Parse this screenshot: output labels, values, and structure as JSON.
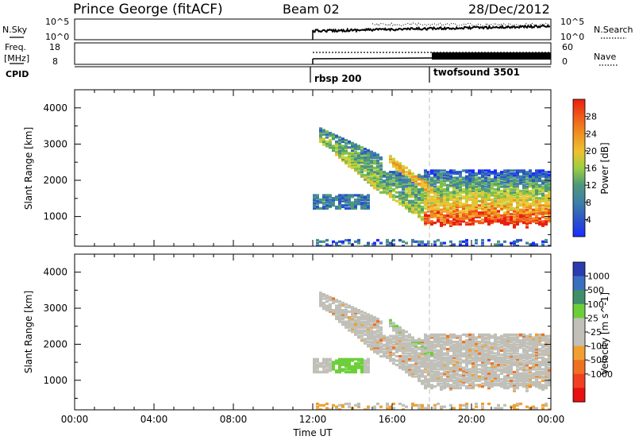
{
  "header": {
    "station": "Prince George (fitACF)",
    "beam": "Beam 02",
    "date": "28/Dec/2012"
  },
  "top_panels": {
    "sky_label": "N.Sky",
    "sky_ticks": [
      "10^5",
      "10^0"
    ],
    "search_label": "N.Search",
    "search_ticks": [
      "10^5",
      "10^0"
    ],
    "freq_label_1": "Freq.",
    "freq_label_2": "[MHz]",
    "freq_ticks": [
      "18",
      "8"
    ],
    "nave_label": "Nave",
    "nave_ticks": [
      "60",
      "0"
    ],
    "cpid_label": "CPID",
    "cpid_segments": [
      {
        "name": "rbsp 200",
        "start_hour": 12
      },
      {
        "name": "twofsound 3501",
        "start_hour": 18
      }
    ]
  },
  "x_axis": {
    "label": "Time UT",
    "ticks": [
      "00:00",
      "04:00",
      "08:00",
      "12:00",
      "16:00",
      "20:00",
      "00:00"
    ]
  },
  "panels": [
    {
      "ylabel": "Slant Range [km]",
      "yticks": [
        "1000",
        "2000",
        "3000",
        "4000"
      ],
      "colorbar_label": "Power [dB]",
      "colorbar_ticks": [
        "4",
        "8",
        "12",
        "16",
        "20",
        "24",
        "28"
      ]
    },
    {
      "ylabel": "Slant Range [km]",
      "yticks": [
        "1000",
        "2000",
        "3000",
        "4000"
      ],
      "colorbar_label": "Velocity [m s^-1]",
      "colorbar_ticks": [
        "1000",
        "500",
        "100",
        "25",
        "-25",
        "-100",
        "-500",
        "-1000"
      ]
    }
  ],
  "colors": {
    "power_scale": [
      "#1a2cff",
      "#2a55c8",
      "#3f7fa8",
      "#4e9a78",
      "#7fbf4c",
      "#c8d23a",
      "#f0c030",
      "#f09020",
      "#f05818",
      "#e82010"
    ],
    "velocity_scale": [
      "#2a3cb0",
      "#3a6fc0",
      "#3f8f6a",
      "#6ccf3a",
      "#c0c0b8",
      "#c0c0b8",
      "#f0a030",
      "#f07020",
      "#f04020",
      "#e81010"
    ]
  },
  "chart_data": [
    {
      "type": "heatmap",
      "title": "Power [dB]",
      "xlabel": "Time UT",
      "ylabel": "Slant Range [km]",
      "x_range_hours": [
        0,
        24
      ],
      "ylim": [
        180,
        4500
      ],
      "clim": [
        0,
        30
      ],
      "data_start_hour": 12,
      "features": [
        {
          "name": "main echo band",
          "hours": [
            12.5,
            24
          ],
          "range_km": [
            800,
            3500
          ],
          "power_db": [
            14,
            30
          ]
        },
        {
          "name": "upper descending band",
          "hours": [
            15.8,
            24
          ],
          "range_km": [
            1700,
            2600
          ],
          "power_db": [
            8,
            20
          ]
        },
        {
          "name": "isolated patch",
          "hours": [
            12,
            14.8
          ],
          "range_km": [
            1200,
            1600
          ],
          "power_db": [
            4,
            12
          ]
        },
        {
          "name": "near range scatter",
          "hours": [
            12,
            24
          ],
          "range_km": [
            180,
            400
          ],
          "power_db": [
            4,
            12
          ]
        }
      ]
    },
    {
      "type": "heatmap",
      "title": "Velocity [m s^-1]",
      "xlabel": "Time UT",
      "ylabel": "Slant Range [km]",
      "x_range_hours": [
        0,
        24
      ],
      "ylim": [
        180,
        4500
      ],
      "clim": [
        -1000,
        1000
      ],
      "data_start_hour": 12,
      "features": [
        {
          "name": "low velocity (ground scatter)",
          "hours": [
            12.5,
            24
          ],
          "range_km": [
            800,
            3500
          ],
          "velocity_ms": [
            -25,
            25
          ]
        },
        {
          "name": "positive velocity patch",
          "hours": [
            12.8,
            14.5
          ],
          "range_km": [
            1400,
            1700
          ],
          "velocity_ms": [
            100,
            500
          ]
        },
        {
          "name": "negative velocity speckles",
          "hours": [
            15,
            24
          ],
          "range_km": [
            800,
            2300
          ],
          "velocity_ms": [
            -500,
            -100
          ]
        }
      ]
    }
  ]
}
